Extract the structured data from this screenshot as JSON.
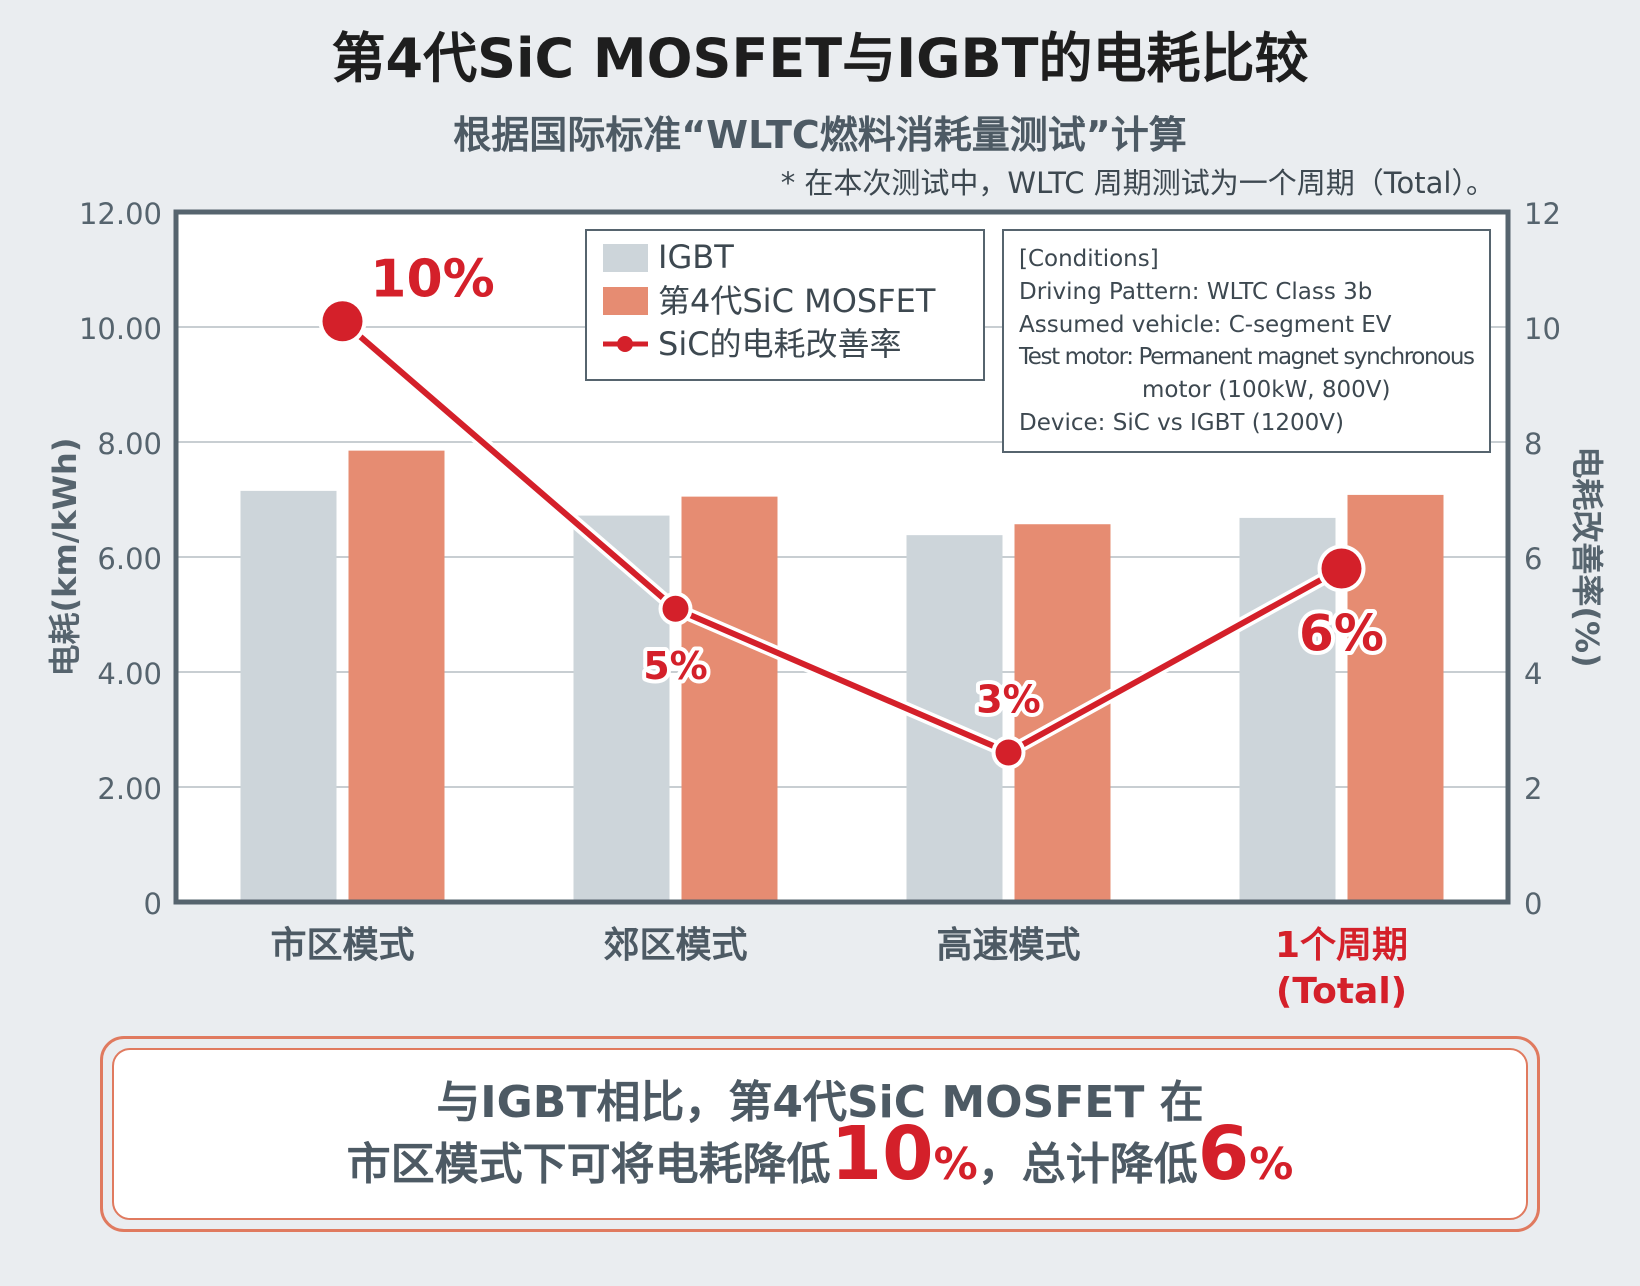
{
  "title": "第4代SiC MOSFET与IGBT的电耗比较",
  "subtitle": "根据国际标准“WLTC燃料消耗量测试”计算",
  "note": "* 在本次测试中，WLTC 周期测试为一个周期（Total）。",
  "chart_data": {
    "type": "bar",
    "categories": [
      "市区模式",
      "郊区模式",
      "高速模式",
      "1个周期\n(Total)"
    ],
    "highlight_category_index": 3,
    "series": [
      {
        "name": "IGBT",
        "type": "bar",
        "axis": "left",
        "color": "#cdd5da",
        "values": [
          7.15,
          6.72,
          6.38,
          6.68
        ]
      },
      {
        "name": "第4代SiC MOSFET",
        "type": "bar",
        "axis": "left",
        "color": "#e68c72",
        "values": [
          7.85,
          7.05,
          6.57,
          7.08
        ]
      },
      {
        "name": "SiC的电耗改善率",
        "type": "line",
        "axis": "right",
        "color": "#d4202a",
        "values": [
          10.1,
          5.1,
          2.6,
          5.8
        ]
      }
    ],
    "data_labels": [
      "10%",
      "5%",
      "3%",
      "6%"
    ],
    "ylabel": "电耗(km/kWh)",
    "y2label": "电耗改善率(%)",
    "ylim": [
      0,
      12
    ],
    "y2lim": [
      0,
      12
    ],
    "yticks": [
      "0",
      "2.00",
      "4.00",
      "6.00",
      "8.00",
      "10.00",
      "12.00"
    ],
    "y2ticks": [
      "0",
      "2",
      "4",
      "6",
      "8",
      "10",
      "12"
    ],
    "grid": true,
    "legend_position": "top-center",
    "conditions": [
      "[Conditions]",
      "Driving Pattern: WLTC Class 3b",
      "Assumed vehicle: C-segment EV",
      "Test motor: Permanent magnet synchronous",
      "motor (100kW, 800V)",
      "Device: SiC vs IGBT (1200V)"
    ]
  },
  "summary": {
    "line1": "与IGBT相比，第4代SiC MOSFET 在",
    "line2_a": "市区模式下可将电耗降低",
    "line2_b": "10",
    "line2_c": "%",
    "line2_d": "，总计降低",
    "line2_e": "6",
    "line2_f": "%"
  }
}
